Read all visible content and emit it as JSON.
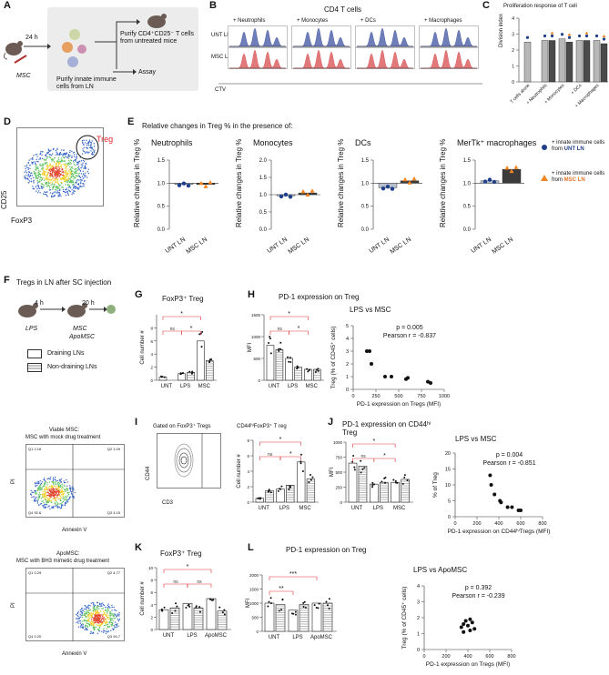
{
  "panels": {
    "A": "A",
    "B": "B",
    "C": "C",
    "D": "D",
    "E": "E",
    "F": "F",
    "G": "G",
    "H": "H",
    "I": "I",
    "J": "J",
    "K": "K",
    "L": "L"
  },
  "panelA": {
    "time": "24 h",
    "injection": "MSC",
    "purify_cd4": "Purify CD4⁺CD25⁻ T cells from untreated mice",
    "purify_innate": "Purify innate immune cells from LN",
    "assay": "Assay"
  },
  "panelB": {
    "title": "CD4 T cells",
    "conditions": [
      "+ Neutrophils",
      "+ Monocytes",
      "+ DCs",
      "+ Macrophages"
    ],
    "rows": [
      "UNT LN",
      "MSC LN"
    ],
    "xlabel": "CTV",
    "colors": {
      "unt": "#4b5ea8",
      "msc": "#d9585a"
    }
  },
  "panelC": {
    "title": "Proliferation response of T cell",
    "ylabel": "Division index",
    "yticks": [
      "0",
      "1",
      "2",
      "3",
      "4"
    ],
    "categories": [
      "T cells alone",
      "+ Neutrophils",
      "+ Monocytes",
      "+ DCs",
      "+ Macrophages"
    ]
  },
  "panelD": {
    "gate": "Treg",
    "xlabel": "FoxP3",
    "ylabel": "CD25"
  },
  "panelE": {
    "title": "Relative changes in Treg % in the presence of:",
    "subtitles": [
      "Neutrophils",
      "Monocytes",
      "DCs",
      "MerTk⁺ macrophages"
    ],
    "ylabel": "Relative changes in Treg %",
    "categories": [
      "UNT LN",
      "MSC LN"
    ],
    "legend": [
      {
        "prefix": "+ innate immune cells from ",
        "source": "UNT LN"
      },
      {
        "prefix": "+ innate immune cells from ",
        "source": "MSC LN"
      }
    ]
  },
  "panelF": {
    "title": "Tregs in LN after SC injection",
    "t1": "4 h",
    "t2": "20 h",
    "lps": "LPS",
    "msc": "MSC",
    "apomsc": "ApoMSC",
    "legend": [
      "Draining LNs",
      "Non-draining LNs"
    ],
    "viable_title": "Viable MSC:",
    "viable_sub": "MSC with mock drug treatment",
    "apo_title": "ApoMSC:",
    "apo_sub": "MSC with BH3 mimetic drug treatment",
    "flow_x": "Annexin V",
    "flow_y": "PI",
    "viable_q": [
      "Q1 2.16",
      "Q2 1.09",
      "Q4 92.6",
      "Q3 4.15"
    ],
    "apo_q": [
      "Q1 0.29",
      "Q2 4.77",
      "Q4 0.20",
      "Q3 94.7"
    ]
  },
  "panelG": {
    "title": "FoxP3⁺ Treg",
    "ylabel": "Cell number #",
    "categories": [
      "UNT",
      "LPS",
      "MSC"
    ],
    "ns": "ns",
    "star": "*"
  },
  "panelH": {
    "title": "PD-1 expression on Treg",
    "ylabel": "MFI",
    "categories": [
      "UNT",
      "LPS",
      "MSC"
    ],
    "ns": "ns",
    "star": "*"
  },
  "panelHs": {
    "title": "LPS vs MSC",
    "p": "p = 0.005",
    "r": "Pearson r = -0.837",
    "xlabel": "PD-1 expression on Tregs (MFI)",
    "ylabel": "Treg (% of CD45⁺ cells)",
    "xticks": [
      "0",
      "250",
      "500",
      "750",
      "1000"
    ],
    "yticks": [
      "0",
      "1",
      "2",
      "3",
      "4",
      "5"
    ]
  },
  "panelI": {
    "gate_title": "Gated on FoxP3⁺ Tregs",
    "xlabel": "CD3",
    "ylabel": "CD44",
    "bar_title": "CD44ʰⁱFoxP3⁺ T reg",
    "bar_ylabel": "Cell number #",
    "categories": [
      "UNT",
      "LPS",
      "MSC"
    ]
  },
  "panelJ": {
    "title": "PD-1 expression on CD44ʰⁱ Treg",
    "ylabel": "MFI",
    "categories": [
      "UNT",
      "LPS",
      "MSC"
    ]
  },
  "panelJs": {
    "title": "LPS vs MSC",
    "p": "p = 0.004",
    "r": "Pearson r = -0.851",
    "xlabel": "PD-1 expression on CD44ʰⁱTregs (MFI)",
    "ylabel": "% of Treg",
    "xticks": [
      "0",
      "200",
      "400",
      "600",
      "800"
    ],
    "yticks": [
      "0",
      "5",
      "10",
      "15",
      "20"
    ]
  },
  "panelK": {
    "title": "FoxP3⁺ Treg",
    "ylabel": "Cell number #",
    "categories": [
      "UNT",
      "LPS",
      "ApoMSC"
    ]
  },
  "panelL": {
    "title": "PD-1 expression on Treg",
    "ylabel": "MFI",
    "categories": [
      "UNT",
      "LPS",
      "ApoMSC"
    ],
    "stars2": "**",
    "stars3": "***"
  },
  "panelLs": {
    "title": "LPS vs ApoMSC",
    "p": "p = 0.392",
    "r": "Pearson r = -0.239",
    "xlabel": "PD-1 expression on Tregs (MFI)",
    "ylabel": "Treg (% of CD45⁺ cells)",
    "xticks": [
      "0",
      "200",
      "400",
      "600",
      "800"
    ],
    "yticks": [
      "0",
      "1",
      "2",
      "3",
      "4"
    ]
  },
  "chart_data": [
    {
      "id": "C",
      "type": "bar",
      "title": "Proliferation response of T cell",
      "categories": [
        "T cells alone",
        "+ Neutrophils",
        "+ Monocytes",
        "+ DCs",
        "+ Macrophages"
      ],
      "series": [
        {
          "name": "UNT LN",
          "values": [
            2.5,
            2.6,
            2.7,
            2.6,
            2.6
          ]
        },
        {
          "name": "MSC LN",
          "values": [
            null,
            2.6,
            2.5,
            2.6,
            2.4
          ]
        }
      ],
      "ylim": [
        0,
        4
      ]
    },
    {
      "id": "E1",
      "type": "bar",
      "title": "Neutrophils",
      "categories": [
        "UNT LN",
        "MSC LN"
      ],
      "values": [
        0.97,
        0.97
      ],
      "ylim": [
        0,
        1.5
      ]
    },
    {
      "id": "E2",
      "type": "bar",
      "title": "Monocytes",
      "categories": [
        "UNT LN",
        "MSC LN"
      ],
      "values": [
        0.97,
        1.05
      ],
      "ylim": [
        0,
        2.0
      ]
    },
    {
      "id": "E3",
      "type": "bar",
      "title": "DCs",
      "categories": [
        "UNT LN",
        "MSC LN"
      ],
      "values": [
        0.9,
        1.05
      ],
      "ylim": [
        0,
        1.5
      ]
    },
    {
      "id": "E4",
      "type": "bar",
      "title": "MerTk⁺ macrophages",
      "categories": [
        "UNT LN",
        "MSC LN"
      ],
      "values": [
        1.05,
        1.3
      ],
      "ylim": [
        0,
        1.5
      ]
    },
    {
      "id": "G",
      "type": "bar",
      "title": "FoxP3⁺ Treg",
      "categories": [
        "UNT",
        "LPS",
        "MSC"
      ],
      "series": [
        {
          "name": "Draining LNs",
          "values": [
            0.5,
            1.0,
            6.0
          ]
        },
        {
          "name": "Non-draining LNs",
          "values": [
            null,
            1.2,
            3.0
          ]
        }
      ],
      "ylim": [
        0,
        10
      ]
    },
    {
      "id": "H",
      "type": "bar",
      "title": "PD-1 expression on Treg",
      "categories": [
        "UNT",
        "LPS",
        "MSC"
      ],
      "series": [
        {
          "name": "Draining LNs",
          "values": [
            800,
            500,
            250
          ]
        },
        {
          "name": "Non-draining LNs",
          "values": [
            700,
            300,
            250
          ]
        }
      ],
      "ylim": [
        0,
        1500
      ]
    },
    {
      "id": "Hs",
      "type": "scatter",
      "title": "LPS vs MSC",
      "x": [
        150,
        200,
        350,
        420,
        600,
        580,
        820,
        850,
        180
      ],
      "y": [
        3,
        2,
        1,
        1,
        0.9,
        0.8,
        0.6,
        0.5,
        3
      ],
      "xlim": [
        0,
        1000
      ],
      "ylim": [
        0,
        5
      ]
    },
    {
      "id": "I",
      "type": "bar",
      "title": "CD44ʰⁱFoxP3⁺ T reg",
      "categories": [
        "UNT",
        "LPS",
        "MSC"
      ],
      "series": [
        {
          "name": "Draining LNs",
          "values": [
            0.5,
            1.7,
            5.2
          ]
        },
        {
          "name": "Non-draining LNs",
          "values": [
            1.5,
            2.2,
            3.0
          ]
        }
      ],
      "ylim": [
        0,
        8
      ]
    },
    {
      "id": "J",
      "type": "bar",
      "title": "PD-1 expression on CD44ʰⁱ Treg",
      "categories": [
        "UNT",
        "LPS",
        "MSC"
      ],
      "series": [
        {
          "name": "Draining LNs",
          "values": [
            650,
            300,
            330
          ]
        },
        {
          "name": "Non-draining LNs",
          "values": [
            600,
            330,
            380
          ]
        }
      ],
      "ylim": [
        0,
        1000
      ]
    },
    {
      "id": "Js",
      "type": "scatter",
      "title": "LPS vs MSC",
      "x": [
        320,
        330,
        360,
        410,
        420,
        480,
        520,
        580,
        600
      ],
      "y": [
        13,
        10,
        7,
        5,
        4.5,
        3,
        3,
        2,
        2
      ],
      "xlim": [
        0,
        800
      ],
      "ylim": [
        0,
        20
      ]
    },
    {
      "id": "K",
      "type": "bar",
      "title": "FoxP3⁺ Treg",
      "categories": [
        "UNT",
        "LPS",
        "ApoMSC"
      ],
      "series": [
        {
          "name": "Draining LNs",
          "values": [
            3.2,
            4.2,
            5.0
          ]
        },
        {
          "name": "Non-draining LNs",
          "values": [
            3.5,
            3.5,
            3.0
          ]
        }
      ],
      "ylim": [
        0,
        10
      ]
    },
    {
      "id": "L",
      "type": "bar",
      "title": "PD-1 expression on Treg",
      "categories": [
        "UNT",
        "LPS",
        "ApoMSC"
      ],
      "series": [
        {
          "name": "Draining LNs",
          "values": [
            1000,
            750,
            1000
          ]
        },
        {
          "name": "Non-draining LNs",
          "values": [
            950,
            950,
            1000
          ]
        }
      ],
      "ylim": [
        0,
        2000
      ]
    },
    {
      "id": "Ls",
      "type": "scatter",
      "title": "LPS vs ApoMSC",
      "x": [
        340,
        360,
        380,
        400,
        420,
        440,
        460,
        360,
        420
      ],
      "y": [
        1.4,
        1.6,
        1.8,
        1.5,
        1.2,
        1.7,
        1.3,
        1.1,
        1.9
      ],
      "xlim": [
        0,
        800
      ],
      "ylim": [
        0,
        4
      ]
    }
  ]
}
